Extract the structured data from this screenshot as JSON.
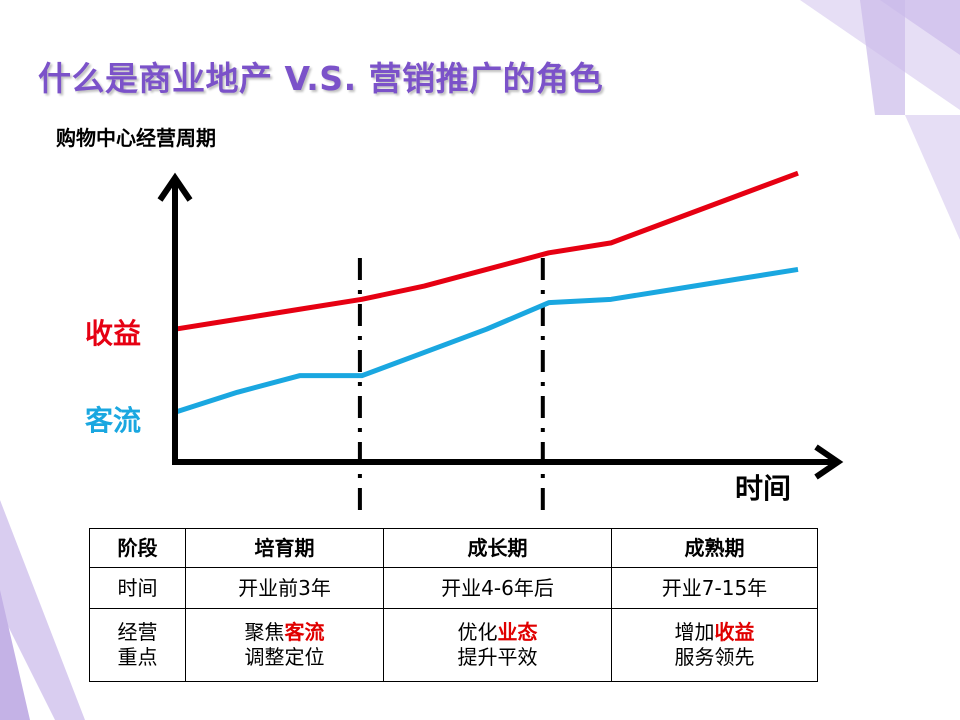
{
  "title": "什么是商业地产 V.S. 营销推广的角色",
  "subtitle": "购物中心经营周期",
  "colors": {
    "title": "#7b52c9",
    "revenue_line": "#e60012",
    "traffic_line": "#1aa7e0",
    "axis": "#000000",
    "decoration": "#c9b8e8",
    "highlight_text": "#e00000"
  },
  "chart_data": {
    "type": "line",
    "xlabel": "时间",
    "ylabel": "",
    "y_axis_labels_note": "series names are printed at the left of the y axis",
    "x": [
      0,
      1,
      2,
      3,
      4,
      5,
      6,
      7,
      8,
      9,
      10
    ],
    "series": [
      {
        "name": "收益",
        "color": "#e60012",
        "values": [
          4.0,
          4.3,
          4.6,
          4.9,
          5.3,
          5.8,
          6.3,
          6.6,
          7.3,
          8.0,
          8.7
        ]
      },
      {
        "name": "客流",
        "color": "#1aa7e0",
        "values": [
          1.5,
          2.1,
          2.6,
          2.6,
          3.3,
          4.0,
          4.8,
          4.9,
          5.2,
          5.5,
          5.8
        ]
      }
    ],
    "xlim": [
      0,
      10
    ],
    "ylim": [
      0,
      10
    ],
    "phase_dividers_x": [
      3,
      6
    ],
    "grid": false,
    "legend": "series labels at left of y axis"
  },
  "table": {
    "header": [
      "阶段",
      "培育期",
      "成长期",
      "成熟期"
    ],
    "time_row": [
      "时间",
      "开业前3年",
      "开业4-6年后",
      "开业7-15年"
    ],
    "focus_row": {
      "label_line1": "经营",
      "label_line2": "重点",
      "cells": [
        {
          "prefix": "聚焦",
          "highlight": "客流",
          "line2": "调整定位"
        },
        {
          "prefix": "优化",
          "highlight": "业态",
          "line2": "提升平效"
        },
        {
          "prefix": "增加",
          "highlight": "收益",
          "line2": "服务领先"
        }
      ]
    }
  }
}
